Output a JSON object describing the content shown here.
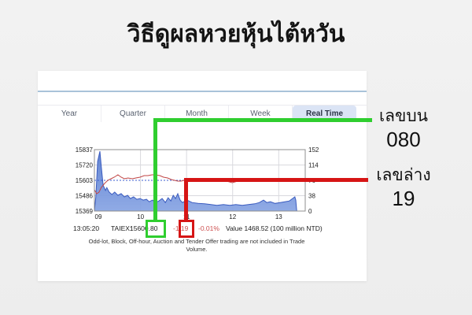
{
  "page": {
    "title": "วิธีดูผลหวยหุ้นไต้หวัน"
  },
  "tabs": {
    "items": [
      {
        "label": "Year",
        "active": false
      },
      {
        "label": "Quarter",
        "active": false
      },
      {
        "label": "Month",
        "active": false
      },
      {
        "label": "Week",
        "active": false
      },
      {
        "label": "Real Time",
        "active": true
      }
    ]
  },
  "chart_data": {
    "type": "area",
    "x_ticks": [
      "09",
      "10",
      "11",
      "12",
      "13"
    ],
    "y_left": {
      "ticks": [
        "15837",
        "15720",
        "15603",
        "15486",
        "15369"
      ],
      "range": [
        15369,
        15837
      ]
    },
    "y_right": {
      "ticks": [
        "152",
        "114",
        "76",
        "38",
        "0"
      ],
      "range": [
        0,
        152
      ]
    },
    "reference_line_left": 15603,
    "grid": true,
    "colors": {
      "area_fill_top": "#5b7fd0",
      "area_fill_bottom": "#8aa6e4",
      "area_stroke": "#3a5bbf",
      "line": "#c04545",
      "reference": "#3c5fd0"
    },
    "series": [
      {
        "name": "taiex-index",
        "axis": "left",
        "type": "line",
        "points": [
          [
            9.0,
            15531
          ],
          [
            9.05,
            15501
          ],
          [
            9.1,
            15513
          ],
          [
            9.15,
            15549
          ],
          [
            9.22,
            15579
          ],
          [
            9.29,
            15603
          ],
          [
            9.36,
            15615
          ],
          [
            9.43,
            15627
          ],
          [
            9.51,
            15645
          ],
          [
            9.58,
            15627
          ],
          [
            9.65,
            15615
          ],
          [
            9.73,
            15621
          ],
          [
            9.82,
            15615
          ],
          [
            9.9,
            15621
          ],
          [
            9.99,
            15627
          ],
          [
            10.08,
            15639
          ],
          [
            10.16,
            15639
          ],
          [
            10.25,
            15645
          ],
          [
            10.33,
            15645
          ],
          [
            10.42,
            15639
          ],
          [
            10.5,
            15627
          ],
          [
            10.59,
            15621
          ],
          [
            10.67,
            15609
          ],
          [
            10.74,
            15603
          ],
          [
            10.81,
            15597
          ],
          [
            10.88,
            15597
          ],
          [
            10.95,
            15603
          ],
          [
            11.05,
            15603
          ],
          [
            11.18,
            15597
          ],
          [
            11.32,
            15603
          ],
          [
            11.46,
            15597
          ],
          [
            11.59,
            15597
          ],
          [
            11.73,
            15603
          ],
          [
            11.87,
            15597
          ],
          [
            11.99,
            15585
          ],
          [
            12.11,
            15597
          ],
          [
            12.24,
            15603
          ],
          [
            12.38,
            15603
          ],
          [
            12.52,
            15597
          ],
          [
            12.65,
            15603
          ],
          [
            12.79,
            15597
          ],
          [
            12.92,
            15603
          ],
          [
            13.06,
            15597
          ],
          [
            13.2,
            15603
          ],
          [
            13.3,
            15597
          ],
          [
            13.39,
            15601
          ]
        ]
      },
      {
        "name": "trade-volume",
        "axis": "right",
        "type": "area",
        "points": [
          [
            9.0,
            0
          ],
          [
            9.03,
            35
          ],
          [
            9.07,
            123
          ],
          [
            9.12,
            148
          ],
          [
            9.15,
            109
          ],
          [
            9.19,
            64
          ],
          [
            9.24,
            51
          ],
          [
            9.27,
            58
          ],
          [
            9.32,
            47
          ],
          [
            9.38,
            41
          ],
          [
            9.44,
            47
          ],
          [
            9.51,
            39
          ],
          [
            9.58,
            43
          ],
          [
            9.65,
            35
          ],
          [
            9.72,
            39
          ],
          [
            9.78,
            31
          ],
          [
            9.85,
            35
          ],
          [
            9.92,
            29
          ],
          [
            9.99,
            31
          ],
          [
            10.06,
            27
          ],
          [
            10.13,
            29
          ],
          [
            10.19,
            23
          ],
          [
            10.26,
            27
          ],
          [
            10.33,
            21
          ],
          [
            10.4,
            25
          ],
          [
            10.47,
            31
          ],
          [
            10.54,
            21
          ],
          [
            10.6,
            33
          ],
          [
            10.66,
            25
          ],
          [
            10.71,
            39
          ],
          [
            10.76,
            31
          ],
          [
            10.81,
            43
          ],
          [
            10.86,
            27
          ],
          [
            10.91,
            21
          ],
          [
            11.01,
            27
          ],
          [
            11.12,
            21
          ],
          [
            11.25,
            19
          ],
          [
            11.39,
            18
          ],
          [
            11.53,
            16
          ],
          [
            11.66,
            14
          ],
          [
            11.8,
            16
          ],
          [
            11.94,
            14
          ],
          [
            12.07,
            16
          ],
          [
            12.21,
            14
          ],
          [
            12.34,
            16
          ],
          [
            12.48,
            18
          ],
          [
            12.58,
            21
          ],
          [
            12.67,
            27
          ],
          [
            12.74,
            21
          ],
          [
            12.82,
            23
          ],
          [
            12.92,
            19
          ],
          [
            13.03,
            21
          ],
          [
            13.13,
            23
          ],
          [
            13.23,
            25
          ],
          [
            13.3,
            31
          ],
          [
            13.35,
            35
          ],
          [
            13.37,
            27
          ],
          [
            13.39,
            0
          ]
        ]
      }
    ]
  },
  "status": {
    "time": "13:05:20",
    "label": "TAIEX:",
    "index_value": "15600.80",
    "change": "-1.19",
    "change_pct": "-0.01%",
    "value_text": "Value 1468.52 (100 million NTD)"
  },
  "note": {
    "line1": "Odd-lot, Block, Off-hour, Auction and Tender Offer trading are not included in Trade",
    "line2": "Volume."
  },
  "annotations": {
    "top_number": {
      "label": "เลขบน",
      "value": "080",
      "color": "#2fce2f"
    },
    "bottom_number": {
      "label": "เลขล่าง",
      "value": "19",
      "color": "#d61515"
    }
  }
}
